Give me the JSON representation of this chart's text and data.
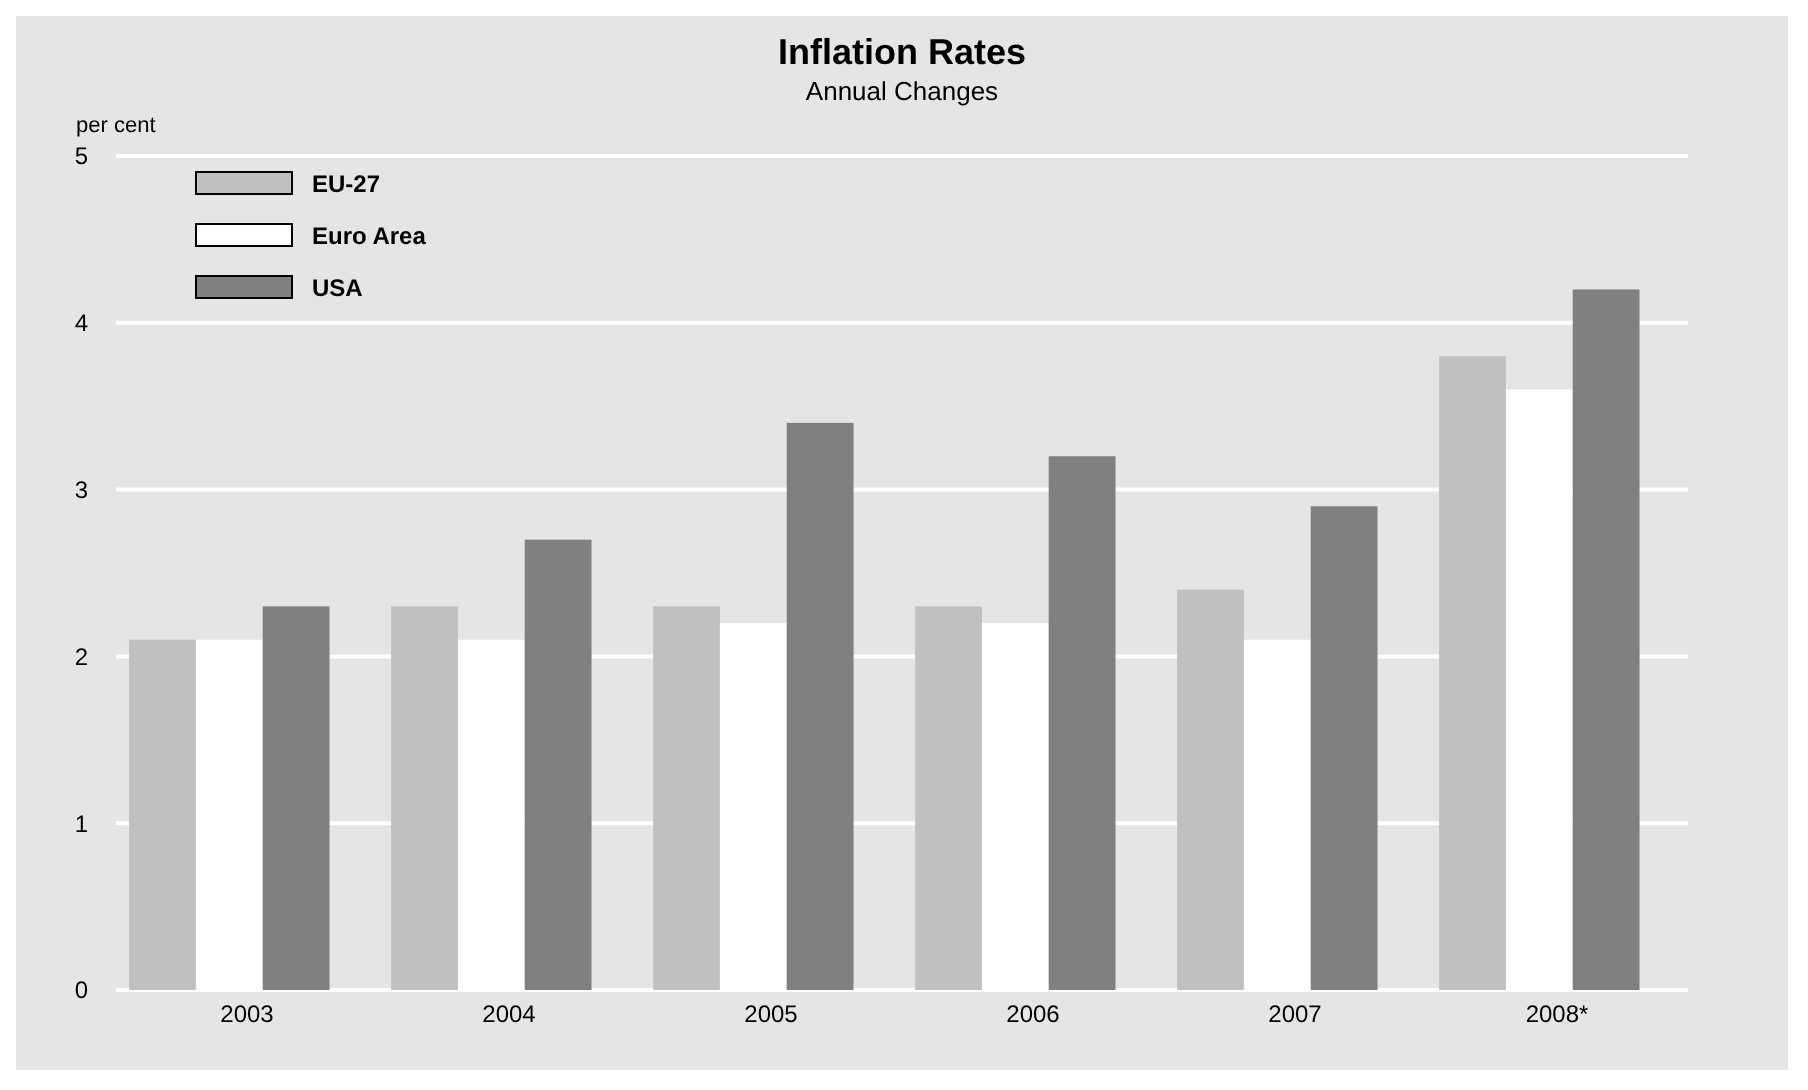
{
  "chart_data": {
    "type": "bar",
    "title": "Inflation Rates",
    "subtitle": "Annual Changes",
    "ylabel": "per cent",
    "categories": [
      "2003",
      "2004",
      "2005",
      "2006",
      "2007",
      "2008*"
    ],
    "series": [
      {
        "name": "EU-27",
        "color": "#c0c0c0",
        "values": [
          2.1,
          2.3,
          2.3,
          2.3,
          2.4,
          3.8
        ]
      },
      {
        "name": "Euro Area",
        "color": "#ffffff",
        "values": [
          2.1,
          2.1,
          2.2,
          2.2,
          2.1,
          3.6
        ]
      },
      {
        "name": "USA",
        "color": "#808080",
        "values": [
          2.3,
          2.7,
          3.4,
          3.2,
          2.9,
          4.2
        ]
      }
    ],
    "ylim": [
      0,
      5
    ],
    "yticks": [
      0,
      1,
      2,
      3,
      4,
      5
    ],
    "grid": "y",
    "legend": "top left"
  }
}
